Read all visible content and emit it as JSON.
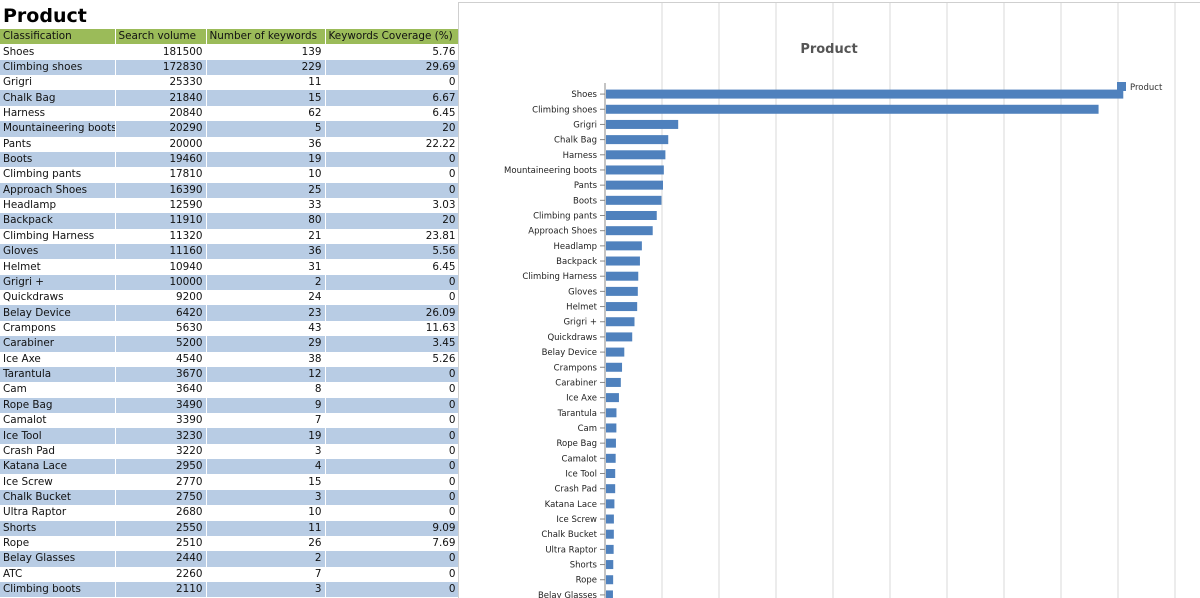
{
  "sheet": {
    "title": "Product",
    "headers": [
      "Classification",
      "Search volume",
      "Number of keywords",
      "Keywords Coverage (%)"
    ],
    "rows": [
      [
        "Shoes",
        "181500",
        "139",
        "5.76"
      ],
      [
        "Climbing shoes",
        "172830",
        "229",
        "29.69"
      ],
      [
        "Grigri",
        "25330",
        "11",
        "0"
      ],
      [
        "Chalk Bag",
        "21840",
        "15",
        "6.67"
      ],
      [
        "Harness",
        "20840",
        "62",
        "6.45"
      ],
      [
        "Mountaineering boots",
        "20290",
        "5",
        "20"
      ],
      [
        "Pants",
        "20000",
        "36",
        "22.22"
      ],
      [
        "Boots",
        "19460",
        "19",
        "0"
      ],
      [
        "Climbing pants",
        "17810",
        "10",
        "0"
      ],
      [
        "Approach Shoes",
        "16390",
        "25",
        "0"
      ],
      [
        "Headlamp",
        "12590",
        "33",
        "3.03"
      ],
      [
        "Backpack",
        "11910",
        "80",
        "20"
      ],
      [
        "Climbing Harness",
        "11320",
        "21",
        "23.81"
      ],
      [
        "Gloves",
        "11160",
        "36",
        "5.56"
      ],
      [
        "Helmet",
        "10940",
        "31",
        "6.45"
      ],
      [
        "Grigri +",
        "10000",
        "2",
        "0"
      ],
      [
        "Quickdraws",
        "9200",
        "24",
        "0"
      ],
      [
        "Belay Device",
        "6420",
        "23",
        "26.09"
      ],
      [
        "Crampons",
        "5630",
        "43",
        "11.63"
      ],
      [
        "Carabiner",
        "5200",
        "29",
        "3.45"
      ],
      [
        "Ice Axe",
        "4540",
        "38",
        "5.26"
      ],
      [
        "Tarantula",
        "3670",
        "12",
        "0"
      ],
      [
        "Cam",
        "3640",
        "8",
        "0"
      ],
      [
        "Rope Bag",
        "3490",
        "9",
        "0"
      ],
      [
        "Camalot",
        "3390",
        "7",
        "0"
      ],
      [
        "Ice Tool",
        "3230",
        "19",
        "0"
      ],
      [
        "Crash Pad",
        "3220",
        "3",
        "0"
      ],
      [
        "Katana Lace",
        "2950",
        "4",
        "0"
      ],
      [
        "Ice Screw",
        "2770",
        "15",
        "0"
      ],
      [
        "Chalk Bucket",
        "2750",
        "3",
        "0"
      ],
      [
        "Ultra Raptor",
        "2680",
        "10",
        "0"
      ],
      [
        "Shorts",
        "2550",
        "11",
        "9.09"
      ],
      [
        "Rope",
        "2510",
        "26",
        "7.69"
      ],
      [
        "Belay Glasses",
        "2440",
        "2",
        "0"
      ],
      [
        "ATC",
        "2260",
        "7",
        "0"
      ],
      [
        "Climbing boots",
        "2110",
        "3",
        "0"
      ]
    ]
  },
  "chart_data": {
    "type": "bar",
    "orientation": "horizontal",
    "title": "Product",
    "legend": "top-right",
    "grid": true,
    "xlim": [
      0,
      200000
    ],
    "categories": [
      "Shoes",
      "Climbing shoes",
      "Grigri",
      "Chalk Bag",
      "Harness",
      "Mountaineering boots",
      "Pants",
      "Boots",
      "Climbing pants",
      "Approach Shoes",
      "Headlamp",
      "Backpack",
      "Climbing Harness",
      "Gloves",
      "Helmet",
      "Grigri +",
      "Quickdraws",
      "Belay Device",
      "Crampons",
      "Carabiner",
      "Ice Axe",
      "Tarantula",
      "Cam",
      "Rope Bag",
      "Camalot",
      "Ice Tool",
      "Crash Pad",
      "Katana Lace",
      "Ice Screw",
      "Chalk Bucket",
      "Ultra Raptor",
      "Shorts",
      "Rope",
      "Belay Glasses"
    ],
    "series": [
      {
        "name": "Product",
        "color": "#4f81bd",
        "values": [
          181500,
          172830,
          25330,
          21840,
          20840,
          20290,
          20000,
          19460,
          17810,
          16390,
          12590,
          11910,
          11320,
          11160,
          10940,
          10000,
          9200,
          6420,
          5630,
          5200,
          4540,
          3670,
          3640,
          3490,
          3390,
          3230,
          3220,
          2950,
          2770,
          2750,
          2680,
          2550,
          2510,
          2440
        ]
      }
    ]
  },
  "colors": {
    "header_bg": "#9bbb59",
    "row_band": "#b8cce4",
    "bar": "#4f81bd",
    "grid": "#d9d9d9"
  }
}
